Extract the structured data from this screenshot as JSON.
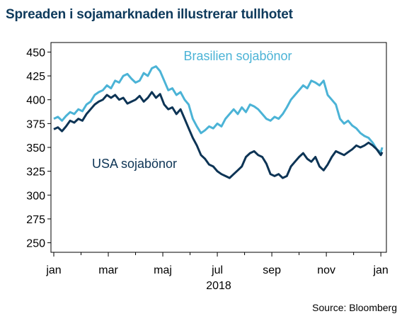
{
  "title": "Spreaden i sojamarknaden illustrerar tullhotet",
  "source": "Source: Bloomberg",
  "colors": {
    "brazil": "#4bb3d6",
    "usa": "#0d3455",
    "title": "#0e3a5c"
  },
  "chart_data": {
    "type": "line",
    "title": "Spreaden i sojamarknaden illustrerar tullhotet",
    "xlabel": "2018",
    "ylabel": "",
    "ylim": [
      240,
      460
    ],
    "yticks": [
      250,
      275,
      300,
      325,
      350,
      375,
      400,
      425,
      450
    ],
    "xlim": [
      0,
      12.1
    ],
    "xticks": [
      {
        "pos": 0,
        "label": "jan"
      },
      {
        "pos": 2,
        "label": "mar"
      },
      {
        "pos": 4,
        "label": "maj"
      },
      {
        "pos": 6,
        "label": "jul"
      },
      {
        "pos": 8,
        "label": "sep"
      },
      {
        "pos": 10,
        "label": "nov"
      },
      {
        "pos": 12,
        "label": "jan"
      }
    ],
    "grid": false,
    "series": [
      {
        "name": "Brasilien sojabönor",
        "x": [
          0,
          0.15,
          0.3,
          0.45,
          0.6,
          0.75,
          0.9,
          1.05,
          1.2,
          1.35,
          1.5,
          1.65,
          1.8,
          1.95,
          2.1,
          2.25,
          2.4,
          2.55,
          2.7,
          2.85,
          3.0,
          3.15,
          3.3,
          3.45,
          3.6,
          3.75,
          3.9,
          4.05,
          4.2,
          4.35,
          4.5,
          4.65,
          4.8,
          4.95,
          5.1,
          5.25,
          5.4,
          5.55,
          5.7,
          5.85,
          6.0,
          6.15,
          6.3,
          6.45,
          6.6,
          6.75,
          6.9,
          7.05,
          7.2,
          7.35,
          7.5,
          7.65,
          7.8,
          7.95,
          8.1,
          8.25,
          8.4,
          8.55,
          8.7,
          8.85,
          9.0,
          9.15,
          9.3,
          9.45,
          9.6,
          9.75,
          9.9,
          10.05,
          10.2,
          10.35,
          10.5,
          10.65,
          10.8,
          10.95,
          11.1,
          11.25,
          11.4,
          11.55,
          11.7,
          11.85,
          12.0,
          12.05
        ],
        "values": [
          380,
          382,
          378,
          383,
          387,
          385,
          390,
          388,
          395,
          398,
          405,
          408,
          410,
          415,
          412,
          420,
          418,
          425,
          427,
          422,
          418,
          420,
          428,
          425,
          433,
          435,
          430,
          420,
          410,
          412,
          405,
          408,
          400,
          395,
          380,
          372,
          365,
          368,
          372,
          370,
          375,
          372,
          380,
          385,
          390,
          385,
          392,
          387,
          395,
          393,
          390,
          385,
          380,
          378,
          382,
          380,
          385,
          392,
          400,
          405,
          410,
          415,
          412,
          420,
          418,
          415,
          420,
          405,
          400,
          395,
          380,
          375,
          378,
          373,
          370,
          365,
          362,
          360,
          355,
          348,
          345,
          350
        ],
        "color": "#4bb3d6"
      },
      {
        "name": "USA sojabönor",
        "x": [
          0,
          0.15,
          0.3,
          0.45,
          0.6,
          0.75,
          0.9,
          1.05,
          1.2,
          1.35,
          1.5,
          1.65,
          1.8,
          1.95,
          2.1,
          2.25,
          2.4,
          2.55,
          2.7,
          2.85,
          3.0,
          3.15,
          3.3,
          3.45,
          3.6,
          3.75,
          3.9,
          4.05,
          4.2,
          4.35,
          4.5,
          4.65,
          4.8,
          4.95,
          5.1,
          5.25,
          5.4,
          5.55,
          5.7,
          5.85,
          6.0,
          6.15,
          6.3,
          6.45,
          6.6,
          6.75,
          6.9,
          7.05,
          7.2,
          7.35,
          7.5,
          7.65,
          7.8,
          7.95,
          8.1,
          8.25,
          8.4,
          8.55,
          8.7,
          8.85,
          9.0,
          9.15,
          9.3,
          9.45,
          9.6,
          9.75,
          9.9,
          10.05,
          10.2,
          10.35,
          10.5,
          10.65,
          10.8,
          10.95,
          11.1,
          11.25,
          11.4,
          11.55,
          11.7,
          11.85,
          12.0,
          12.05
        ],
        "values": [
          369,
          371,
          367,
          372,
          378,
          376,
          380,
          378,
          385,
          390,
          395,
          398,
          400,
          405,
          402,
          405,
          400,
          402,
          396,
          398,
          400,
          404,
          398,
          402,
          408,
          402,
          406,
          395,
          390,
          392,
          385,
          390,
          380,
          370,
          360,
          352,
          342,
          338,
          332,
          330,
          325,
          322,
          320,
          318,
          322,
          326,
          330,
          340,
          344,
          346,
          342,
          340,
          333,
          322,
          320,
          322,
          318,
          320,
          330,
          335,
          340,
          344,
          338,
          335,
          340,
          330,
          326,
          332,
          340,
          346,
          344,
          342,
          345,
          348,
          352,
          350,
          352,
          355,
          352,
          348,
          342,
          345
        ],
        "color": "#0d3455"
      }
    ],
    "annotations": [
      {
        "text": "Brasilien sojabönor",
        "series": 0
      },
      {
        "text": "USA sojabönor",
        "series": 1
      }
    ]
  }
}
